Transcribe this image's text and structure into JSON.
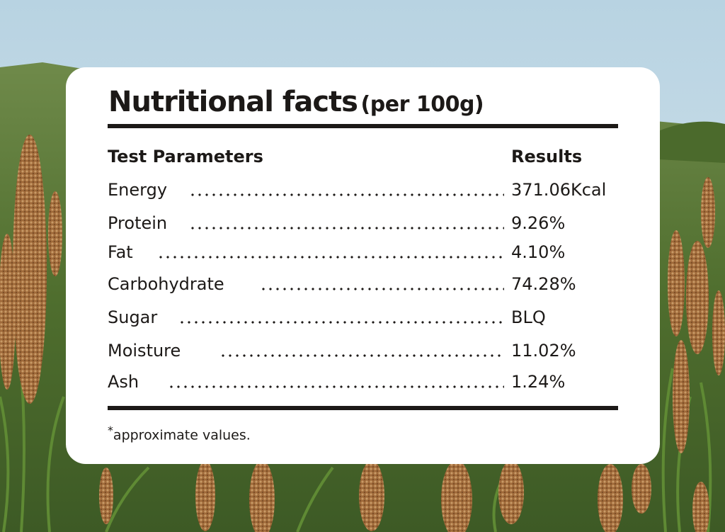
{
  "card": {
    "title": "Nutritional facts",
    "title_suffix": "(per 100g)",
    "col_parameter": "Test Parameters",
    "col_result": "Results",
    "rows": [
      {
        "label": "Energy",
        "value": "371.06Kcal"
      },
      {
        "label": "Protein",
        "value": "9.26%"
      },
      {
        "label": "Fat",
        "value": "4.10%"
      },
      {
        "label": "Carbohydrate",
        "value": "74.28%"
      },
      {
        "label": "Sugar",
        "value": "BLQ"
      },
      {
        "label": "Moisture",
        "value": "11.02%"
      },
      {
        "label": "Ash",
        "value": "1.24%"
      }
    ],
    "note_mark": "*",
    "note": "approximate values."
  },
  "colors": {
    "text": "#1c1917",
    "card": "#ffffff",
    "sky": "#c9dde6",
    "field": "#5d7a36",
    "millet_head": "#a86f3c"
  }
}
